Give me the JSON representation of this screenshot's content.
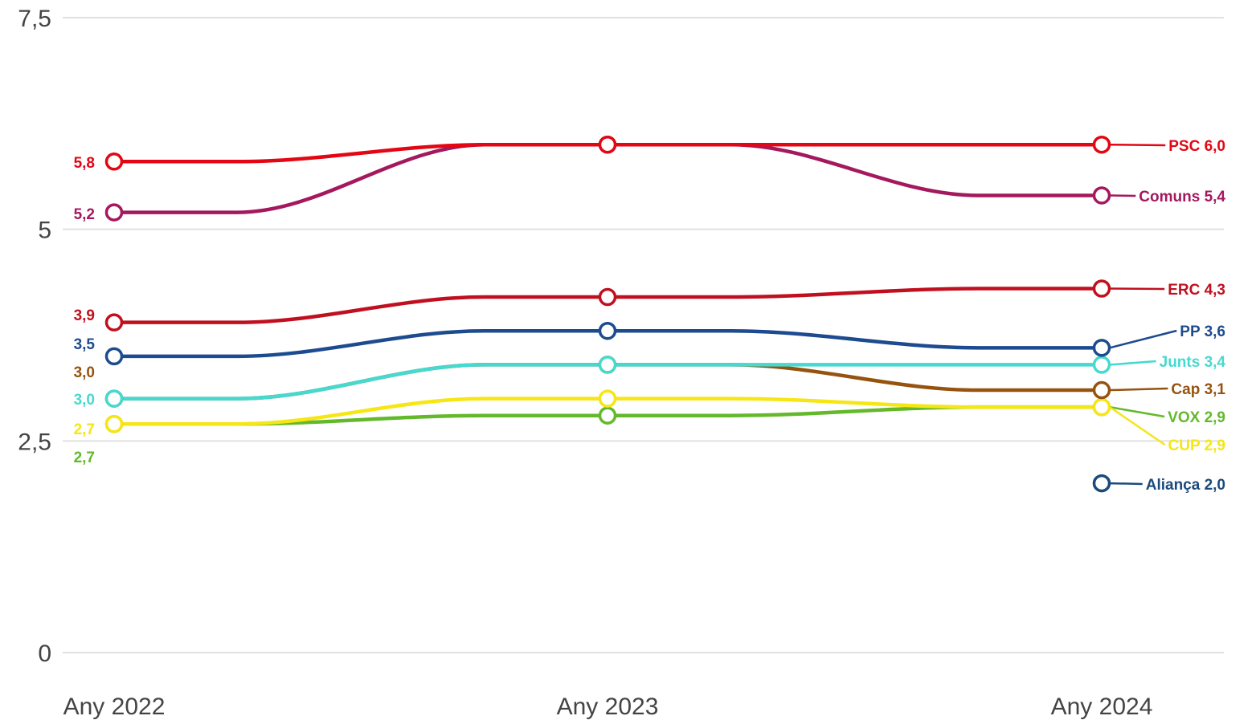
{
  "chart_data": {
    "type": "line",
    "title": "",
    "xlabel": "",
    "ylabel": "",
    "x": [
      "Any 2022",
      "Any 2023",
      "Any 2024"
    ],
    "ylim": [
      0,
      7.5
    ],
    "yticks": [
      0,
      2.5,
      5,
      7.5
    ],
    "ytick_labels": [
      "0",
      "2,5",
      "5",
      "7,5"
    ],
    "grid": true,
    "legend": "direct labels at line ends",
    "series": [
      {
        "name": "PSC",
        "color": "#e30613",
        "values": [
          5.8,
          6.0,
          6.0
        ],
        "start_label": "5,8",
        "end_label": "PSC 6,0"
      },
      {
        "name": "Comuns",
        "color": "#a4185e",
        "values": [
          5.2,
          6.0,
          5.4
        ],
        "start_label": "5,2",
        "end_label": "Comuns 5,4"
      },
      {
        "name": "ERC",
        "color": "#c0101f",
        "values": [
          3.9,
          4.2,
          4.3
        ],
        "start_label": "3,9",
        "end_label": "ERC 4,3"
      },
      {
        "name": "PP",
        "color": "#1d4b8f",
        "values": [
          3.5,
          3.8,
          3.6
        ],
        "start_label": "3,5",
        "end_label": "PP 3,6"
      },
      {
        "name": "Junts",
        "color": "#46d9cf",
        "values": [
          3.0,
          3.4,
          3.4
        ],
        "start_label": "3,0",
        "end_label": "Junts 3,4"
      },
      {
        "name": "Cap",
        "color": "#96530f",
        "values": [
          3.0,
          3.4,
          3.1
        ],
        "start_label": "3,0",
        "end_label": "Cap 3,1"
      },
      {
        "name": "CUP",
        "color": "#f5e614",
        "values": [
          2.7,
          3.0,
          2.9
        ],
        "start_label": "2,7",
        "end_label": "CUP 2,9"
      },
      {
        "name": "VOX",
        "color": "#63b92b",
        "values": [
          2.7,
          2.8,
          2.9
        ],
        "start_label": "2,7",
        "end_label": "VOX 2,9"
      },
      {
        "name": "Aliança",
        "color": "#1a4a7c",
        "values": [
          null,
          null,
          2.0
        ],
        "start_label": "",
        "end_label": "Aliança 2,0"
      }
    ]
  }
}
